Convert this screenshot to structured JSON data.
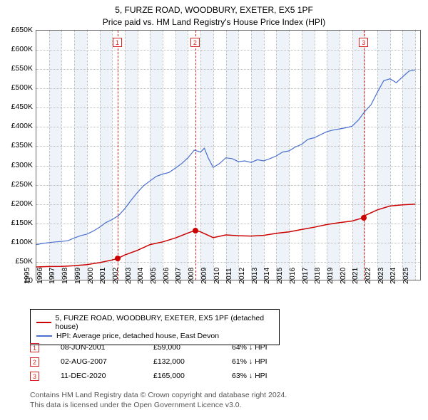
{
  "title1": "5, FURZE ROAD, WOODBURY, EXETER, EX5 1PF",
  "title2": "Price paid vs. HM Land Registry's House Price Index (HPI)",
  "chart": {
    "type": "line",
    "x_min": 1995,
    "x_max": 2025.5,
    "y_min": 0,
    "y_max": 650000,
    "y_ticks": [
      0,
      50000,
      100000,
      150000,
      200000,
      250000,
      300000,
      350000,
      400000,
      450000,
      500000,
      550000,
      600000,
      650000
    ],
    "y_tick_labels": [
      "£0",
      "£50K",
      "£100K",
      "£150K",
      "£200K",
      "£250K",
      "£300K",
      "£350K",
      "£400K",
      "£450K",
      "£500K",
      "£550K",
      "£600K",
      "£650K"
    ],
    "x_ticks": [
      1995,
      1996,
      1997,
      1998,
      1999,
      2000,
      2001,
      2002,
      2003,
      2004,
      2005,
      2006,
      2007,
      2008,
      2009,
      2010,
      2011,
      2012,
      2013,
      2014,
      2015,
      2016,
      2017,
      2018,
      2019,
      2020,
      2021,
      2022,
      2023,
      2024,
      2025
    ],
    "grid_color": "#bbbbbb",
    "background_color": "#ffffff",
    "band_color": "#eef3f9",
    "bands": [
      [
        1996,
        1997
      ],
      [
        1998,
        1999
      ],
      [
        2000,
        2001
      ],
      [
        2002,
        2003
      ],
      [
        2004,
        2005
      ],
      [
        2006,
        2007
      ],
      [
        2008,
        2009
      ],
      [
        2010,
        2011
      ],
      [
        2012,
        2013
      ],
      [
        2014,
        2015
      ],
      [
        2016,
        2017
      ],
      [
        2018,
        2019
      ],
      [
        2020,
        2021
      ],
      [
        2022,
        2023
      ],
      [
        2024,
        2025
      ]
    ],
    "series": [
      {
        "name": "HPI blue",
        "color": "#4a6fd0",
        "width": 1.2,
        "points": [
          [
            1995,
            95000
          ],
          [
            1995.5,
            98000
          ],
          [
            1996,
            100000
          ],
          [
            1996.5,
            102000
          ],
          [
            1997,
            103000
          ],
          [
            1997.5,
            105000
          ],
          [
            1998,
            112000
          ],
          [
            1998.5,
            118000
          ],
          [
            1999,
            122000
          ],
          [
            1999.5,
            130000
          ],
          [
            2000,
            140000
          ],
          [
            2000.5,
            152000
          ],
          [
            2001,
            160000
          ],
          [
            2001.5,
            170000
          ],
          [
            2002,
            188000
          ],
          [
            2002.5,
            210000
          ],
          [
            2003,
            230000
          ],
          [
            2003.5,
            248000
          ],
          [
            2004,
            260000
          ],
          [
            2004.5,
            272000
          ],
          [
            2005,
            278000
          ],
          [
            2005.5,
            282000
          ],
          [
            2006,
            293000
          ],
          [
            2006.5,
            305000
          ],
          [
            2007,
            320000
          ],
          [
            2007.5,
            340000
          ],
          [
            2008,
            335000
          ],
          [
            2008.3,
            345000
          ],
          [
            2008.6,
            320000
          ],
          [
            2009,
            295000
          ],
          [
            2009.5,
            305000
          ],
          [
            2010,
            320000
          ],
          [
            2010.5,
            318000
          ],
          [
            2011,
            310000
          ],
          [
            2011.5,
            312000
          ],
          [
            2012,
            308000
          ],
          [
            2012.5,
            315000
          ],
          [
            2013,
            312000
          ],
          [
            2013.5,
            318000
          ],
          [
            2014,
            325000
          ],
          [
            2014.5,
            335000
          ],
          [
            2015,
            338000
          ],
          [
            2015.5,
            348000
          ],
          [
            2016,
            355000
          ],
          [
            2016.5,
            368000
          ],
          [
            2017,
            372000
          ],
          [
            2017.5,
            380000
          ],
          [
            2018,
            388000
          ],
          [
            2018.5,
            392000
          ],
          [
            2019,
            395000
          ],
          [
            2019.5,
            398000
          ],
          [
            2020,
            402000
          ],
          [
            2020.5,
            418000
          ],
          [
            2021,
            440000
          ],
          [
            2021.5,
            458000
          ],
          [
            2022,
            490000
          ],
          [
            2022.5,
            520000
          ],
          [
            2023,
            525000
          ],
          [
            2023.5,
            515000
          ],
          [
            2024,
            530000
          ],
          [
            2024.5,
            545000
          ],
          [
            2025,
            548000
          ]
        ]
      },
      {
        "name": "price red",
        "color": "#cc0000",
        "width": 1.5,
        "points": [
          [
            1995,
            37000
          ],
          [
            1996,
            38000
          ],
          [
            1997,
            38500
          ],
          [
            1998,
            40000
          ],
          [
            1999,
            43000
          ],
          [
            2000,
            48000
          ],
          [
            2001,
            55000
          ],
          [
            2001.44,
            59000
          ],
          [
            2002,
            68000
          ],
          [
            2003,
            80000
          ],
          [
            2004,
            95000
          ],
          [
            2005,
            102000
          ],
          [
            2006,
            112000
          ],
          [
            2007,
            125000
          ],
          [
            2007.59,
            132000
          ],
          [
            2008,
            128000
          ],
          [
            2009,
            113000
          ],
          [
            2010,
            120000
          ],
          [
            2011,
            118000
          ],
          [
            2012,
            117000
          ],
          [
            2013,
            119000
          ],
          [
            2014,
            124000
          ],
          [
            2015,
            128000
          ],
          [
            2016,
            134000
          ],
          [
            2017,
            140000
          ],
          [
            2018,
            147000
          ],
          [
            2019,
            152000
          ],
          [
            2020,
            156000
          ],
          [
            2020.95,
            165000
          ],
          [
            2021,
            170000
          ],
          [
            2022,
            185000
          ],
          [
            2023,
            195000
          ],
          [
            2024,
            198000
          ],
          [
            2025,
            200000
          ]
        ]
      }
    ],
    "markers": [
      {
        "n": "1",
        "x": 2001.44,
        "y": 59000
      },
      {
        "n": "2",
        "x": 2007.59,
        "y": 132000
      },
      {
        "n": "3",
        "x": 2020.95,
        "y": 165000
      }
    ]
  },
  "legend": {
    "items": [
      {
        "color": "#cc0000",
        "label": "5, FURZE ROAD, WOODBURY, EXETER, EX5 1PF (detached house)"
      },
      {
        "color": "#4a6fd0",
        "label": "HPI: Average price, detached house, East Devon"
      }
    ]
  },
  "table": {
    "rows": [
      {
        "n": "1",
        "date": "08-JUN-2001",
        "price": "£59,000",
        "diff": "64% ↓ HPI"
      },
      {
        "n": "2",
        "date": "02-AUG-2007",
        "price": "£132,000",
        "diff": "61% ↓ HPI"
      },
      {
        "n": "3",
        "date": "11-DEC-2020",
        "price": "£165,000",
        "diff": "63% ↓ HPI"
      }
    ]
  },
  "footer1": "Contains HM Land Registry data © Crown copyright and database right 2024.",
  "footer2": "This data is licensed under the Open Government Licence v3.0."
}
